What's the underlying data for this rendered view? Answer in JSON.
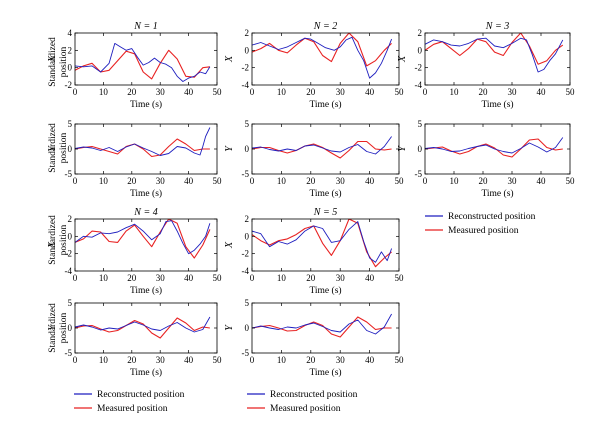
{
  "figure": {
    "colors": {
      "reconstructed": "#1f1fbf",
      "measured": "#e82222",
      "axes": "#000000"
    },
    "legend": {
      "reconstructed": "Reconstructed position",
      "measured": "Measured position"
    },
    "axis_text": {
      "time_label": "Time (s)",
      "standardized": "Standardized",
      "position": "position",
      "x_var": "X",
      "y_var": "Y"
    }
  },
  "chart_data": [
    {
      "id": "n1-x",
      "type": "line",
      "title": "N = 1",
      "ylabel": "Standardized position X",
      "xlabel": "Time (s)",
      "xlim": [
        0,
        50
      ],
      "ylim": [
        -2,
        4
      ],
      "xticks": [
        0,
        10,
        20,
        30,
        40,
        50
      ],
      "yticks": [
        -2,
        0,
        2,
        4
      ],
      "series": [
        {
          "name": "Reconstructed position",
          "x": [
            0,
            3,
            6,
            9,
            12,
            14,
            16,
            18,
            20,
            22,
            24,
            26,
            28,
            30,
            32,
            34,
            36,
            38,
            40,
            42,
            44,
            46,
            47.5
          ],
          "values": [
            0.2,
            0.1,
            0.2,
            -0.5,
            0.5,
            2.8,
            2.4,
            2.0,
            2.2,
            1.2,
            0.3,
            0.6,
            1.1,
            0.6,
            0.4,
            0.0,
            -1.0,
            -1.6,
            -1.2,
            -1.0,
            -0.5,
            -0.7,
            0.1
          ]
        },
        {
          "name": "Measured position",
          "x": [
            0,
            3,
            6,
            9,
            12,
            15,
            18,
            21,
            24,
            27,
            30,
            33,
            36,
            39,
            42,
            45,
            47.5
          ],
          "values": [
            -0.3,
            0.2,
            0.5,
            -0.5,
            -0.3,
            0.8,
            1.9,
            1.6,
            -0.5,
            -1.3,
            0.5,
            2.0,
            1.0,
            -1.0,
            -1.1,
            0.0,
            0.1
          ]
        }
      ]
    },
    {
      "id": "n2-x",
      "type": "line",
      "title": "N = 2",
      "ylabel": "X",
      "xlabel": "Time (s)",
      "xlim": [
        0,
        50
      ],
      "ylim": [
        -4,
        2
      ],
      "xticks": [
        0,
        10,
        20,
        30,
        40,
        50
      ],
      "yticks": [
        -4,
        -2,
        0,
        2
      ],
      "series": [
        {
          "name": "Reconstructed position",
          "x": [
            0,
            3,
            6,
            9,
            12,
            15,
            18,
            20,
            22,
            25,
            28,
            30,
            32,
            34,
            36,
            38,
            40,
            42,
            44,
            46,
            47.5
          ],
          "values": [
            0.6,
            0.9,
            0.5,
            0.1,
            0.4,
            0.9,
            1.4,
            1.3,
            0.9,
            0.3,
            0.0,
            0.4,
            1.2,
            1.5,
            0.0,
            -1.2,
            -3.2,
            -2.6,
            -1.5,
            0.0,
            1.3
          ]
        },
        {
          "name": "Measured position",
          "x": [
            0,
            3,
            6,
            9,
            12,
            15,
            18,
            21,
            24,
            27,
            30,
            33,
            36,
            39,
            42,
            45,
            47.5
          ],
          "values": [
            -0.2,
            0.2,
            0.8,
            0.0,
            -0.3,
            0.6,
            1.4,
            1.0,
            -0.6,
            -1.3,
            0.8,
            2.0,
            1.0,
            -1.8,
            -1.2,
            0.0,
            0.8
          ]
        }
      ]
    },
    {
      "id": "n3-x",
      "type": "line",
      "title": "N = 3",
      "ylabel": "X",
      "xlabel": "Time (s)",
      "xlim": [
        0,
        50
      ],
      "ylim": [
        -4,
        2
      ],
      "xticks": [
        0,
        10,
        20,
        30,
        40,
        50
      ],
      "yticks": [
        -4,
        -2,
        0,
        2
      ],
      "series": [
        {
          "name": "Reconstructed position",
          "x": [
            0,
            3,
            6,
            9,
            12,
            15,
            18,
            21,
            24,
            27,
            30,
            33,
            35,
            37,
            39,
            41,
            43,
            45,
            47.5
          ],
          "values": [
            0.7,
            1.2,
            1.0,
            0.6,
            0.5,
            0.8,
            1.3,
            1.4,
            0.5,
            0.3,
            0.8,
            1.4,
            1.2,
            -0.5,
            -2.5,
            -2.2,
            -1.2,
            -0.4,
            1.2
          ]
        },
        {
          "name": "Measured position",
          "x": [
            0,
            3,
            6,
            9,
            12,
            15,
            18,
            21,
            24,
            27,
            30,
            33,
            36,
            39,
            42,
            45,
            47.5
          ],
          "values": [
            0.0,
            0.7,
            1.0,
            0.2,
            -0.6,
            0.2,
            1.3,
            1.0,
            -0.2,
            -0.6,
            0.9,
            2.0,
            0.5,
            -1.6,
            -1.2,
            0.0,
            0.6
          ]
        }
      ]
    },
    {
      "id": "n1-y",
      "type": "line",
      "ylabel": "Standardized position Y",
      "xlabel": "Time (s)",
      "xlim": [
        0,
        50
      ],
      "ylim": [
        -5,
        5
      ],
      "xticks": [
        0,
        10,
        20,
        30,
        40,
        50
      ],
      "yticks": [
        -5,
        0,
        5
      ],
      "series": [
        {
          "name": "Reconstructed position",
          "x": [
            0,
            3,
            6,
            9,
            12,
            15,
            18,
            21,
            24,
            27,
            30,
            33,
            36,
            39,
            42,
            44,
            45,
            46,
            47.5
          ],
          "values": [
            0.1,
            0.4,
            0.2,
            -0.3,
            0.3,
            -0.5,
            0.4,
            1.0,
            0.2,
            -0.5,
            -1.3,
            -0.9,
            0.5,
            0.2,
            -0.8,
            -1.2,
            0.5,
            2.5,
            4.3
          ]
        },
        {
          "name": "Measured position",
          "x": [
            0,
            3,
            6,
            9,
            12,
            15,
            18,
            21,
            24,
            27,
            30,
            33,
            36,
            39,
            42,
            45,
            47.5
          ],
          "values": [
            0.0,
            0.3,
            0.5,
            0.0,
            -0.5,
            -1.0,
            0.5,
            1.0,
            0.0,
            -1.5,
            -1.2,
            0.5,
            2.0,
            1.0,
            -0.3,
            0.0,
            0.0
          ]
        }
      ]
    },
    {
      "id": "n2-y",
      "type": "line",
      "ylabel": "Y",
      "xlabel": "Time (s)",
      "xlim": [
        0,
        50
      ],
      "ylim": [
        -5,
        5
      ],
      "xticks": [
        0,
        10,
        20,
        30,
        40,
        50
      ],
      "yticks": [
        -5,
        0,
        5
      ],
      "series": [
        {
          "name": "Reconstructed position",
          "x": [
            0,
            3,
            6,
            9,
            12,
            15,
            18,
            21,
            24,
            27,
            30,
            33,
            36,
            39,
            42,
            45,
            47.5
          ],
          "values": [
            0.2,
            0.4,
            -0.1,
            -0.4,
            0.0,
            -0.3,
            0.6,
            0.8,
            0.2,
            -0.4,
            -0.6,
            0.3,
            0.9,
            -0.5,
            -1.0,
            0.5,
            2.5
          ]
        },
        {
          "name": "Measured position",
          "x": [
            0,
            3,
            6,
            9,
            12,
            15,
            18,
            21,
            24,
            27,
            30,
            33,
            36,
            39,
            42,
            45,
            47.5
          ],
          "values": [
            0.0,
            0.3,
            0.3,
            -0.3,
            -0.8,
            -0.3,
            0.6,
            1.0,
            0.3,
            -0.8,
            -1.8,
            -0.3,
            1.5,
            1.5,
            0.0,
            -0.2,
            0.0
          ]
        }
      ]
    },
    {
      "id": "n3-y",
      "type": "line",
      "ylabel": "Y",
      "xlabel": "Time (s)",
      "xlim": [
        0,
        50
      ],
      "ylim": [
        -5,
        5
      ],
      "xticks": [
        0,
        10,
        20,
        30,
        40,
        50
      ],
      "yticks": [
        -5,
        0,
        5
      ],
      "series": [
        {
          "name": "Reconstructed position",
          "x": [
            0,
            3,
            6,
            9,
            12,
            15,
            18,
            21,
            24,
            27,
            30,
            33,
            36,
            39,
            42,
            45,
            47.5
          ],
          "values": [
            0.1,
            0.3,
            0.0,
            -0.5,
            -0.4,
            0.1,
            0.5,
            0.8,
            0.0,
            -0.5,
            -0.8,
            0.1,
            1.2,
            0.4,
            -0.6,
            0.3,
            2.3
          ]
        },
        {
          "name": "Measured position",
          "x": [
            0,
            3,
            6,
            9,
            12,
            15,
            18,
            21,
            24,
            27,
            30,
            33,
            36,
            39,
            42,
            45,
            47.5
          ],
          "values": [
            0.0,
            0.2,
            0.4,
            -0.4,
            -1.0,
            -0.5,
            0.5,
            1.0,
            0.2,
            -1.2,
            -1.6,
            0.0,
            1.8,
            2.0,
            0.3,
            -0.2,
            0.0
          ]
        }
      ]
    },
    {
      "id": "n4-x",
      "type": "line",
      "title": "N = 4",
      "ylabel": "Standardized position X",
      "xlabel": "Time (s)",
      "xlim": [
        0,
        50
      ],
      "ylim": [
        -4,
        2
      ],
      "xticks": [
        0,
        10,
        20,
        30,
        40,
        50
      ],
      "yticks": [
        -4,
        -2,
        0,
        2
      ],
      "series": [
        {
          "name": "Reconstructed position",
          "x": [
            0,
            3,
            6,
            9,
            12,
            15,
            18,
            21,
            24,
            27,
            30,
            32,
            34,
            36,
            38,
            40,
            42,
            44,
            46,
            47.5
          ],
          "values": [
            -0.7,
            0.0,
            -0.1,
            0.4,
            0.3,
            0.5,
            1.0,
            1.4,
            0.6,
            -0.4,
            0.3,
            1.7,
            1.8,
            0.6,
            -0.8,
            -2.0,
            -1.6,
            -0.9,
            0.0,
            1.5
          ]
        },
        {
          "name": "Measured position",
          "x": [
            0,
            3,
            6,
            9,
            12,
            15,
            18,
            21,
            24,
            27,
            30,
            33,
            36,
            39,
            42,
            45,
            47.5
          ],
          "values": [
            -0.7,
            -0.3,
            0.6,
            0.5,
            -0.6,
            -0.7,
            0.6,
            1.3,
            0.0,
            -1.2,
            0.5,
            2.0,
            1.5,
            -1.2,
            -2.5,
            -1.0,
            0.8
          ]
        }
      ]
    },
    {
      "id": "n5-x",
      "type": "line",
      "title": "N = 5",
      "ylabel": "X",
      "xlabel": "Time (s)",
      "xlim": [
        0,
        50
      ],
      "ylim": [
        -4,
        2
      ],
      "xticks": [
        0,
        10,
        20,
        30,
        40,
        50
      ],
      "yticks": [
        -4,
        -2,
        0,
        2
      ],
      "series": [
        {
          "name": "Reconstructed position",
          "x": [
            0,
            3,
            6,
            9,
            12,
            15,
            18,
            21,
            24,
            27,
            30,
            33,
            36,
            38,
            40,
            42,
            44,
            46,
            47.5
          ],
          "values": [
            0.6,
            0.3,
            -1.2,
            -0.6,
            -0.9,
            -0.4,
            0.6,
            1.2,
            0.9,
            -0.7,
            -0.5,
            0.8,
            1.7,
            -0.6,
            -2.5,
            -3.0,
            -1.8,
            -2.8,
            -1.4
          ]
        },
        {
          "name": "Measured position",
          "x": [
            0,
            3,
            6,
            9,
            12,
            15,
            18,
            21,
            24,
            27,
            30,
            33,
            36,
            39,
            42,
            45,
            47.5
          ],
          "values": [
            0.2,
            -0.5,
            -1.0,
            -0.5,
            -0.3,
            0.2,
            0.9,
            1.2,
            -0.8,
            -2.2,
            -0.5,
            2.0,
            1.5,
            -1.8,
            -3.5,
            -2.5,
            -1.8
          ]
        }
      ]
    },
    {
      "id": "n4-y",
      "type": "line",
      "ylabel": "Standardized position Y",
      "xlabel": "Time (s)",
      "xlim": [
        0,
        50
      ],
      "ylim": [
        -5,
        5
      ],
      "xticks": [
        0,
        10,
        20,
        30,
        40,
        50
      ],
      "yticks": [
        -5,
        0,
        5
      ],
      "series": [
        {
          "name": "Reconstructed position",
          "x": [
            0,
            3,
            6,
            9,
            12,
            15,
            18,
            21,
            24,
            27,
            30,
            33,
            36,
            39,
            42,
            45,
            47.5
          ],
          "values": [
            0.2,
            0.6,
            0.2,
            -0.4,
            0.0,
            -0.2,
            0.5,
            1.2,
            0.6,
            -0.2,
            -0.5,
            0.4,
            1.1,
            0.0,
            -0.8,
            -0.3,
            2.2
          ]
        },
        {
          "name": "Measured position",
          "x": [
            0,
            3,
            6,
            9,
            12,
            15,
            18,
            21,
            24,
            27,
            30,
            33,
            36,
            39,
            42,
            45,
            47.5
          ],
          "values": [
            0.0,
            0.4,
            0.5,
            -0.2,
            -0.8,
            -0.5,
            0.5,
            1.5,
            0.8,
            -1.0,
            -2.0,
            0.0,
            2.0,
            1.0,
            -0.5,
            0.2,
            0.0
          ]
        }
      ]
    },
    {
      "id": "n5-y",
      "type": "line",
      "ylabel": "Y",
      "xlabel": "Time (s)",
      "xlim": [
        0,
        50
      ],
      "ylim": [
        -5,
        5
      ],
      "xticks": [
        0,
        10,
        20,
        30,
        40,
        50
      ],
      "yticks": [
        -5,
        0,
        5
      ],
      "series": [
        {
          "name": "Reconstructed position",
          "x": [
            0,
            3,
            6,
            9,
            12,
            15,
            18,
            21,
            24,
            27,
            30,
            33,
            36,
            39,
            42,
            45,
            47.5
          ],
          "values": [
            0.0,
            0.4,
            0.0,
            -0.3,
            0.2,
            0.0,
            0.6,
            1.0,
            0.3,
            -0.5,
            -0.8,
            0.8,
            1.6,
            -0.5,
            -1.2,
            0.2,
            2.8
          ]
        },
        {
          "name": "Measured position",
          "x": [
            0,
            3,
            6,
            9,
            12,
            15,
            18,
            21,
            24,
            27,
            30,
            33,
            36,
            39,
            42,
            45,
            47.5
          ],
          "values": [
            0.0,
            0.3,
            0.5,
            0.0,
            -0.6,
            -0.5,
            0.5,
            1.2,
            0.5,
            -1.2,
            -1.8,
            0.2,
            2.2,
            1.2,
            -0.3,
            0.0,
            0.0
          ]
        }
      ]
    }
  ]
}
